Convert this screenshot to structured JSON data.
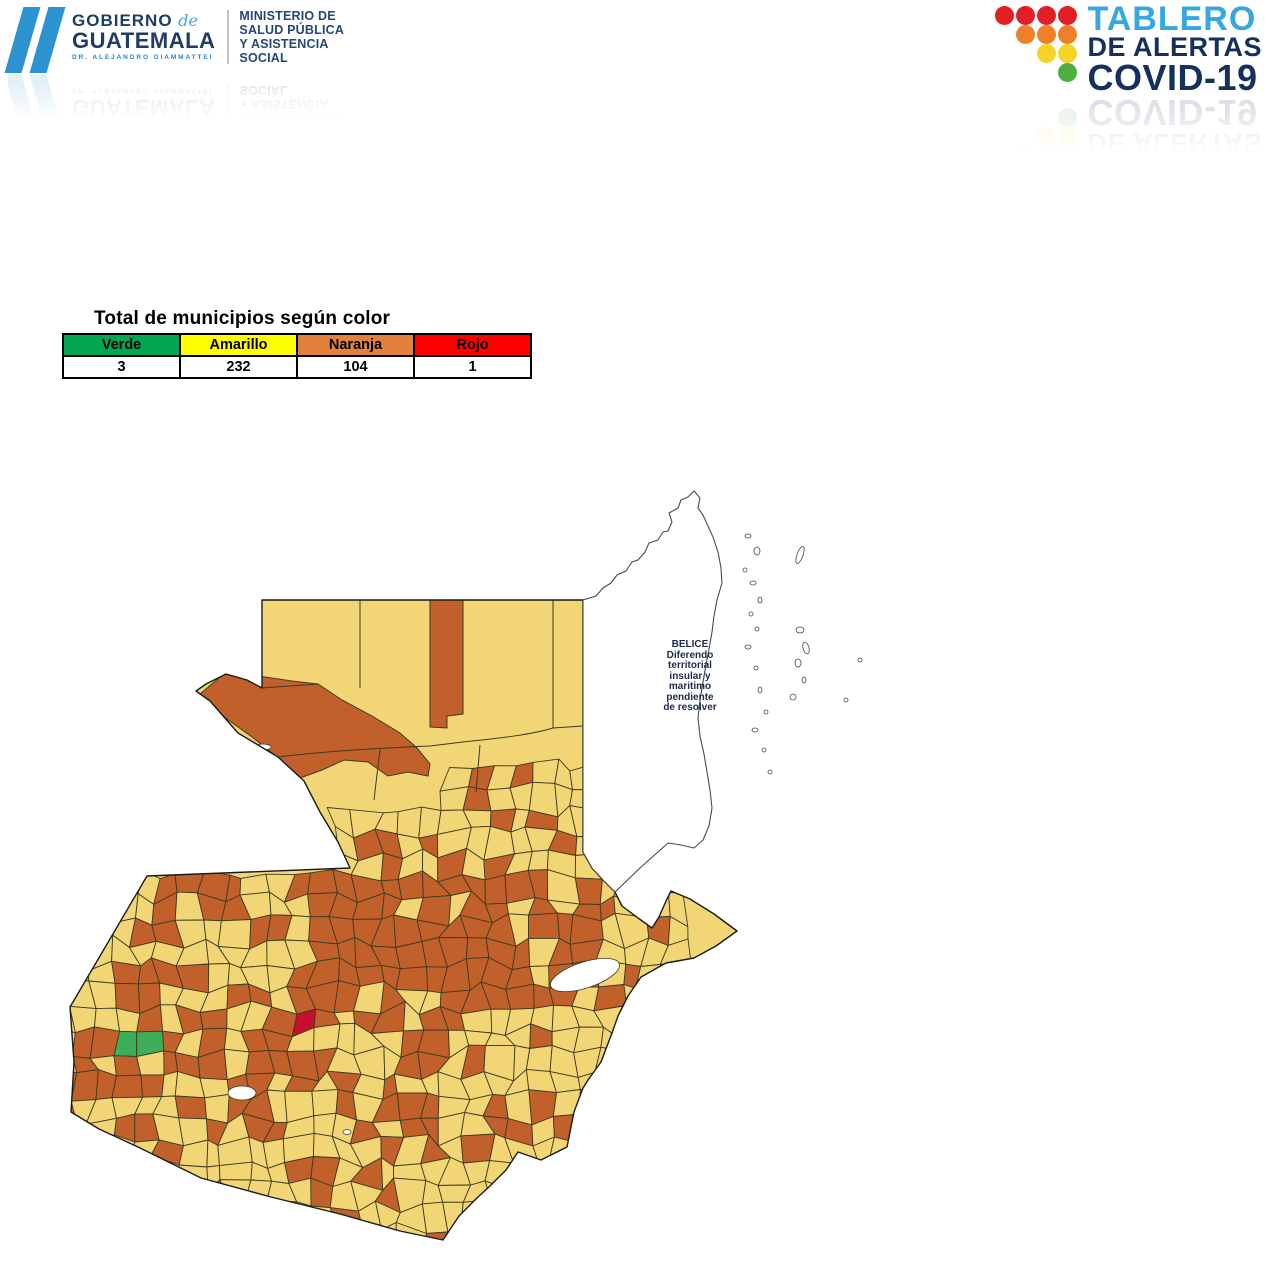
{
  "header": {
    "gov_logo": {
      "gobierno": "GOBIERNO",
      "de": "de",
      "guatemala": "GUATEMALA",
      "subtitle": "DR. ALEJANDRO GIAMMATTEI",
      "ministry": "MINISTERIO DE\nSALUD PÚBLICA\nY ASISTENCIA\nSOCIAL",
      "bar_color": "#2d93d0"
    },
    "covid_logo": {
      "line1": "TABLERO",
      "line2": "DE ALERTAS",
      "line3": "COVID-19",
      "dot_colors": {
        "red": "#E31E24",
        "orange": "#F07F29",
        "yellow": "#F5D327",
        "green": "#4CAF3F"
      }
    }
  },
  "summary_table": {
    "title": "Total de municipios según color",
    "columns": [
      {
        "label": "Verde",
        "value": "3",
        "color": "#00A651"
      },
      {
        "label": "Amarillo",
        "value": "232",
        "color": "#FFFF00"
      },
      {
        "label": "Naranja",
        "value": "104",
        "color": "#E2813B"
      },
      {
        "label": "Rojo",
        "value": "1",
        "color": "#FF0000"
      }
    ]
  },
  "map": {
    "belize_note_lines": [
      "BELICE",
      "Diferendo",
      "territorial",
      "insular y",
      "maritimo",
      "pendiente",
      "de resolver"
    ],
    "colors": {
      "verde": "#3FAE5A",
      "amarillo": "#F2D575",
      "naranja": "#C2602C",
      "rojo": "#C8102E",
      "agua": "#FFFFFF",
      "border": "#3d3b20",
      "outline": "#1b1b1b",
      "belize_stroke": "#4a4a4a"
    },
    "legend_counts": {
      "verde": 3,
      "amarillo": 232,
      "naranja": 104,
      "rojo": 1
    }
  },
  "chart_data": {
    "type": "table",
    "title": "Total de municipios según color",
    "categories": [
      "Verde",
      "Amarillo",
      "Naranja",
      "Rojo"
    ],
    "values": [
      3,
      232,
      104,
      1
    ]
  }
}
